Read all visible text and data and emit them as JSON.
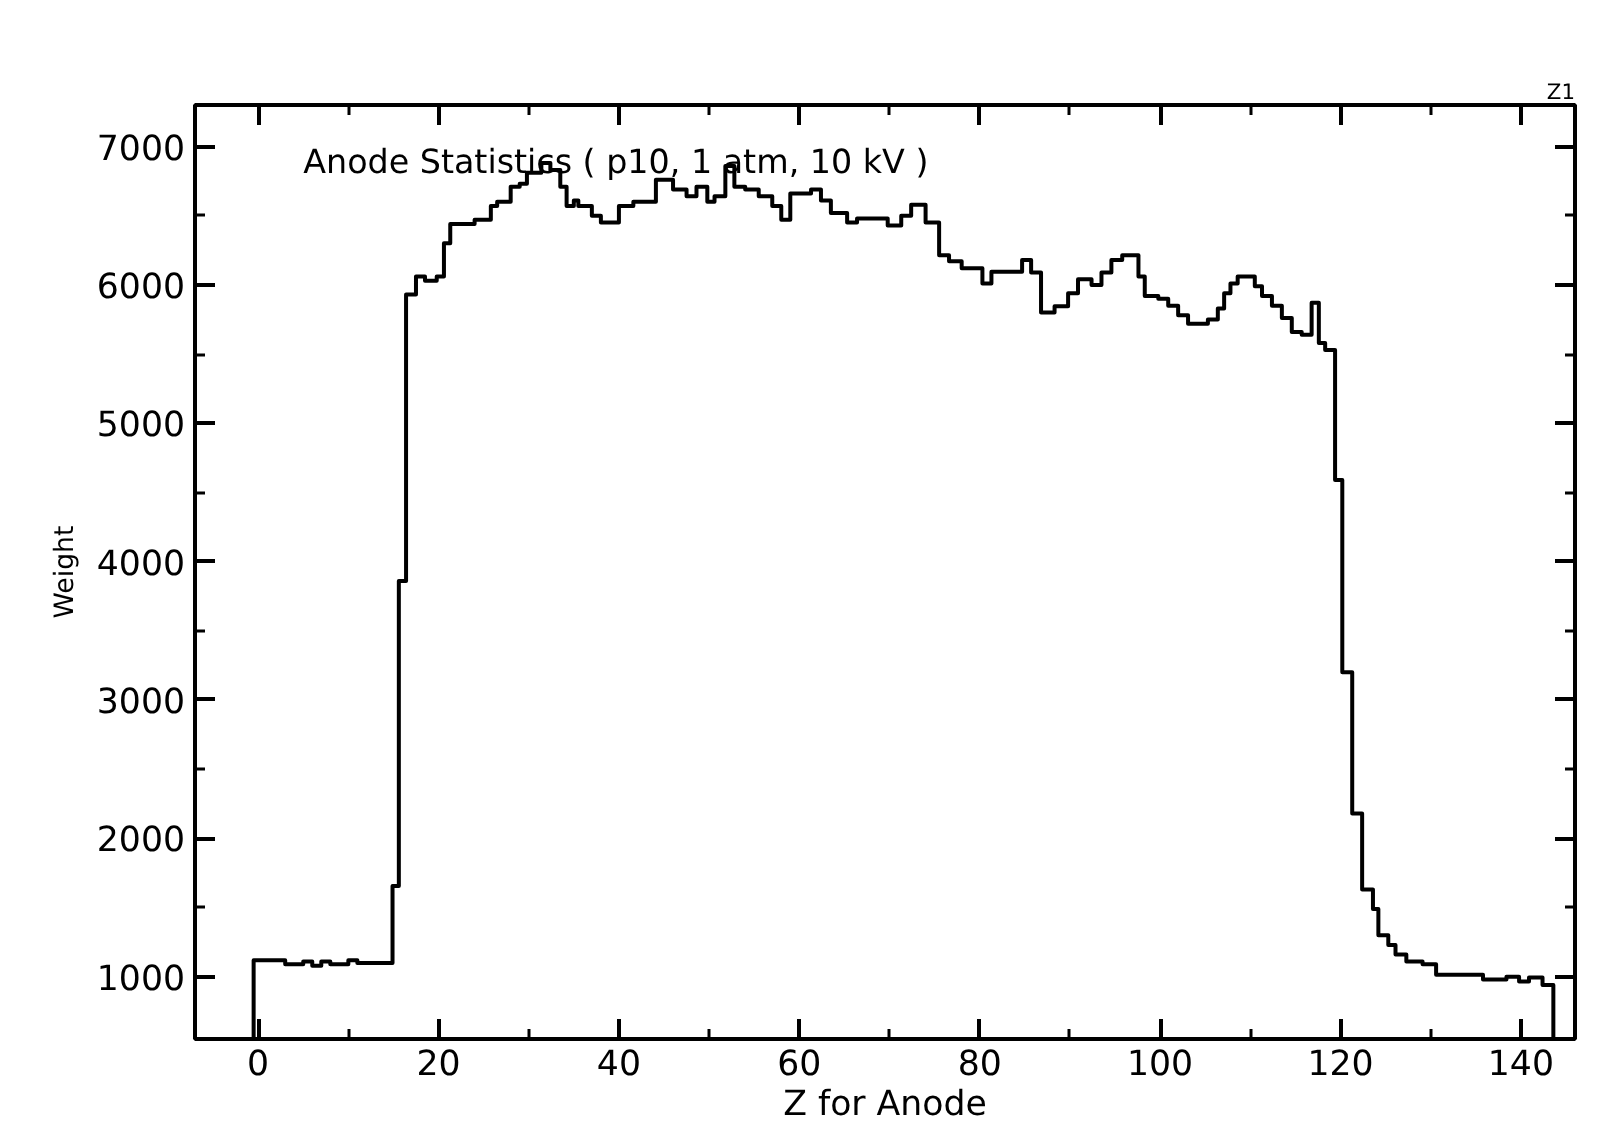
{
  "chart_data": {
    "type": "histogram",
    "title": "Anode Statistics ( p10, 1 atm, 10 kV )",
    "xlabel": "Z for Anode",
    "ylabel": "Weight",
    "annotations": [
      "Z1"
    ],
    "bins": [
      -0.5,
      3,
      5,
      6,
      7,
      8,
      10,
      11,
      14.9,
      15.6,
      16.4,
      17.5,
      18.5,
      19.8,
      20.6,
      21.3,
      24,
      25.8,
      26.5,
      28,
      29,
      29.8,
      31.4,
      32.4,
      33.5,
      34.2,
      35,
      35.5,
      37,
      38,
      40,
      41.6,
      44.1,
      46,
      47.5,
      48.6,
      49.8,
      50.6,
      51.8,
      52.8,
      54,
      55.5,
      57,
      58,
      59,
      61.3,
      62.4,
      63.5,
      65.3,
      66.4,
      69.8,
      71.3,
      72.4,
      74,
      75.5,
      76.6,
      78,
      80.3,
      81.3,
      84.7,
      85.7,
      86.8,
      88.3,
      89.8,
      90.9,
      92.4,
      93.5,
      94.6,
      95.8,
      97.6,
      98.3,
      99.8,
      100.9,
      102,
      103.1,
      105.3,
      106.4,
      107.1,
      107.8,
      108.6,
      110.5,
      111.3,
      112.4,
      113.5,
      114.6,
      115.7,
      116.8,
      117.6,
      118.3,
      119.4,
      120.2,
      121.3,
      122.4,
      123.6,
      124.2,
      125.3,
      126.1,
      127.3,
      129.1,
      130.6,
      135.8,
      138.4,
      139.8,
      140.9,
      142.4,
      143.6
    ],
    "values": [
      1120,
      1090,
      1110,
      1080,
      1110,
      1090,
      1120,
      1100,
      1655,
      3860,
      5930,
      6060,
      6030,
      6060,
      6300,
      6440,
      6470,
      6570,
      6600,
      6710,
      6730,
      6810,
      6880,
      6830,
      6710,
      6570,
      6610,
      6570,
      6500,
      6450,
      6570,
      6600,
      6760,
      6690,
      6640,
      6710,
      6600,
      6640,
      6860,
      6710,
      6690,
      6640,
      6570,
      6470,
      6660,
      6690,
      6610,
      6520,
      6450,
      6480,
      6430,
      6500,
      6580,
      6450,
      6215,
      6170,
      6120,
      6010,
      6095,
      6180,
      6090,
      5800,
      5845,
      5940,
      6040,
      6000,
      6090,
      6180,
      6215,
      6060,
      5920,
      5900,
      5850,
      5780,
      5720,
      5750,
      5830,
      5940,
      6010,
      6060,
      5990,
      5920,
      5850,
      5760,
      5660,
      5640,
      5870,
      5580,
      5530,
      4590,
      3200,
      2180,
      1630,
      1490,
      1300,
      1230,
      1160,
      1110,
      1090,
      1015,
      980,
      1000,
      966,
      995,
      940
    ],
    "color": "#000000",
    "xlim": [
      -7,
      146
    ],
    "ylim": [
      550,
      7300
    ],
    "xticks": [
      0,
      {
        "value": 10,
        "label": null
      },
      20,
      {
        "value": 30,
        "label": null
      },
      40,
      {
        "value": 50,
        "label": null
      },
      60,
      {
        "value": 70,
        "label": null
      },
      80,
      {
        "value": 90,
        "label": null
      },
      100,
      {
        "value": 110,
        "label": null
      },
      120,
      {
        "value": 130,
        "label": null
      },
      140
    ],
    "yticks": [
      1000,
      {
        "value": 1500,
        "label": null
      },
      2000,
      {
        "value": 2500,
        "label": null
      },
      3000,
      {
        "value": 3500,
        "label": null
      },
      4000,
      {
        "value": 4500,
        "label": null
      },
      5000,
      {
        "value": 5500,
        "label": null
      },
      6000,
      {
        "value": 6500,
        "label": null
      },
      7000
    ]
  }
}
